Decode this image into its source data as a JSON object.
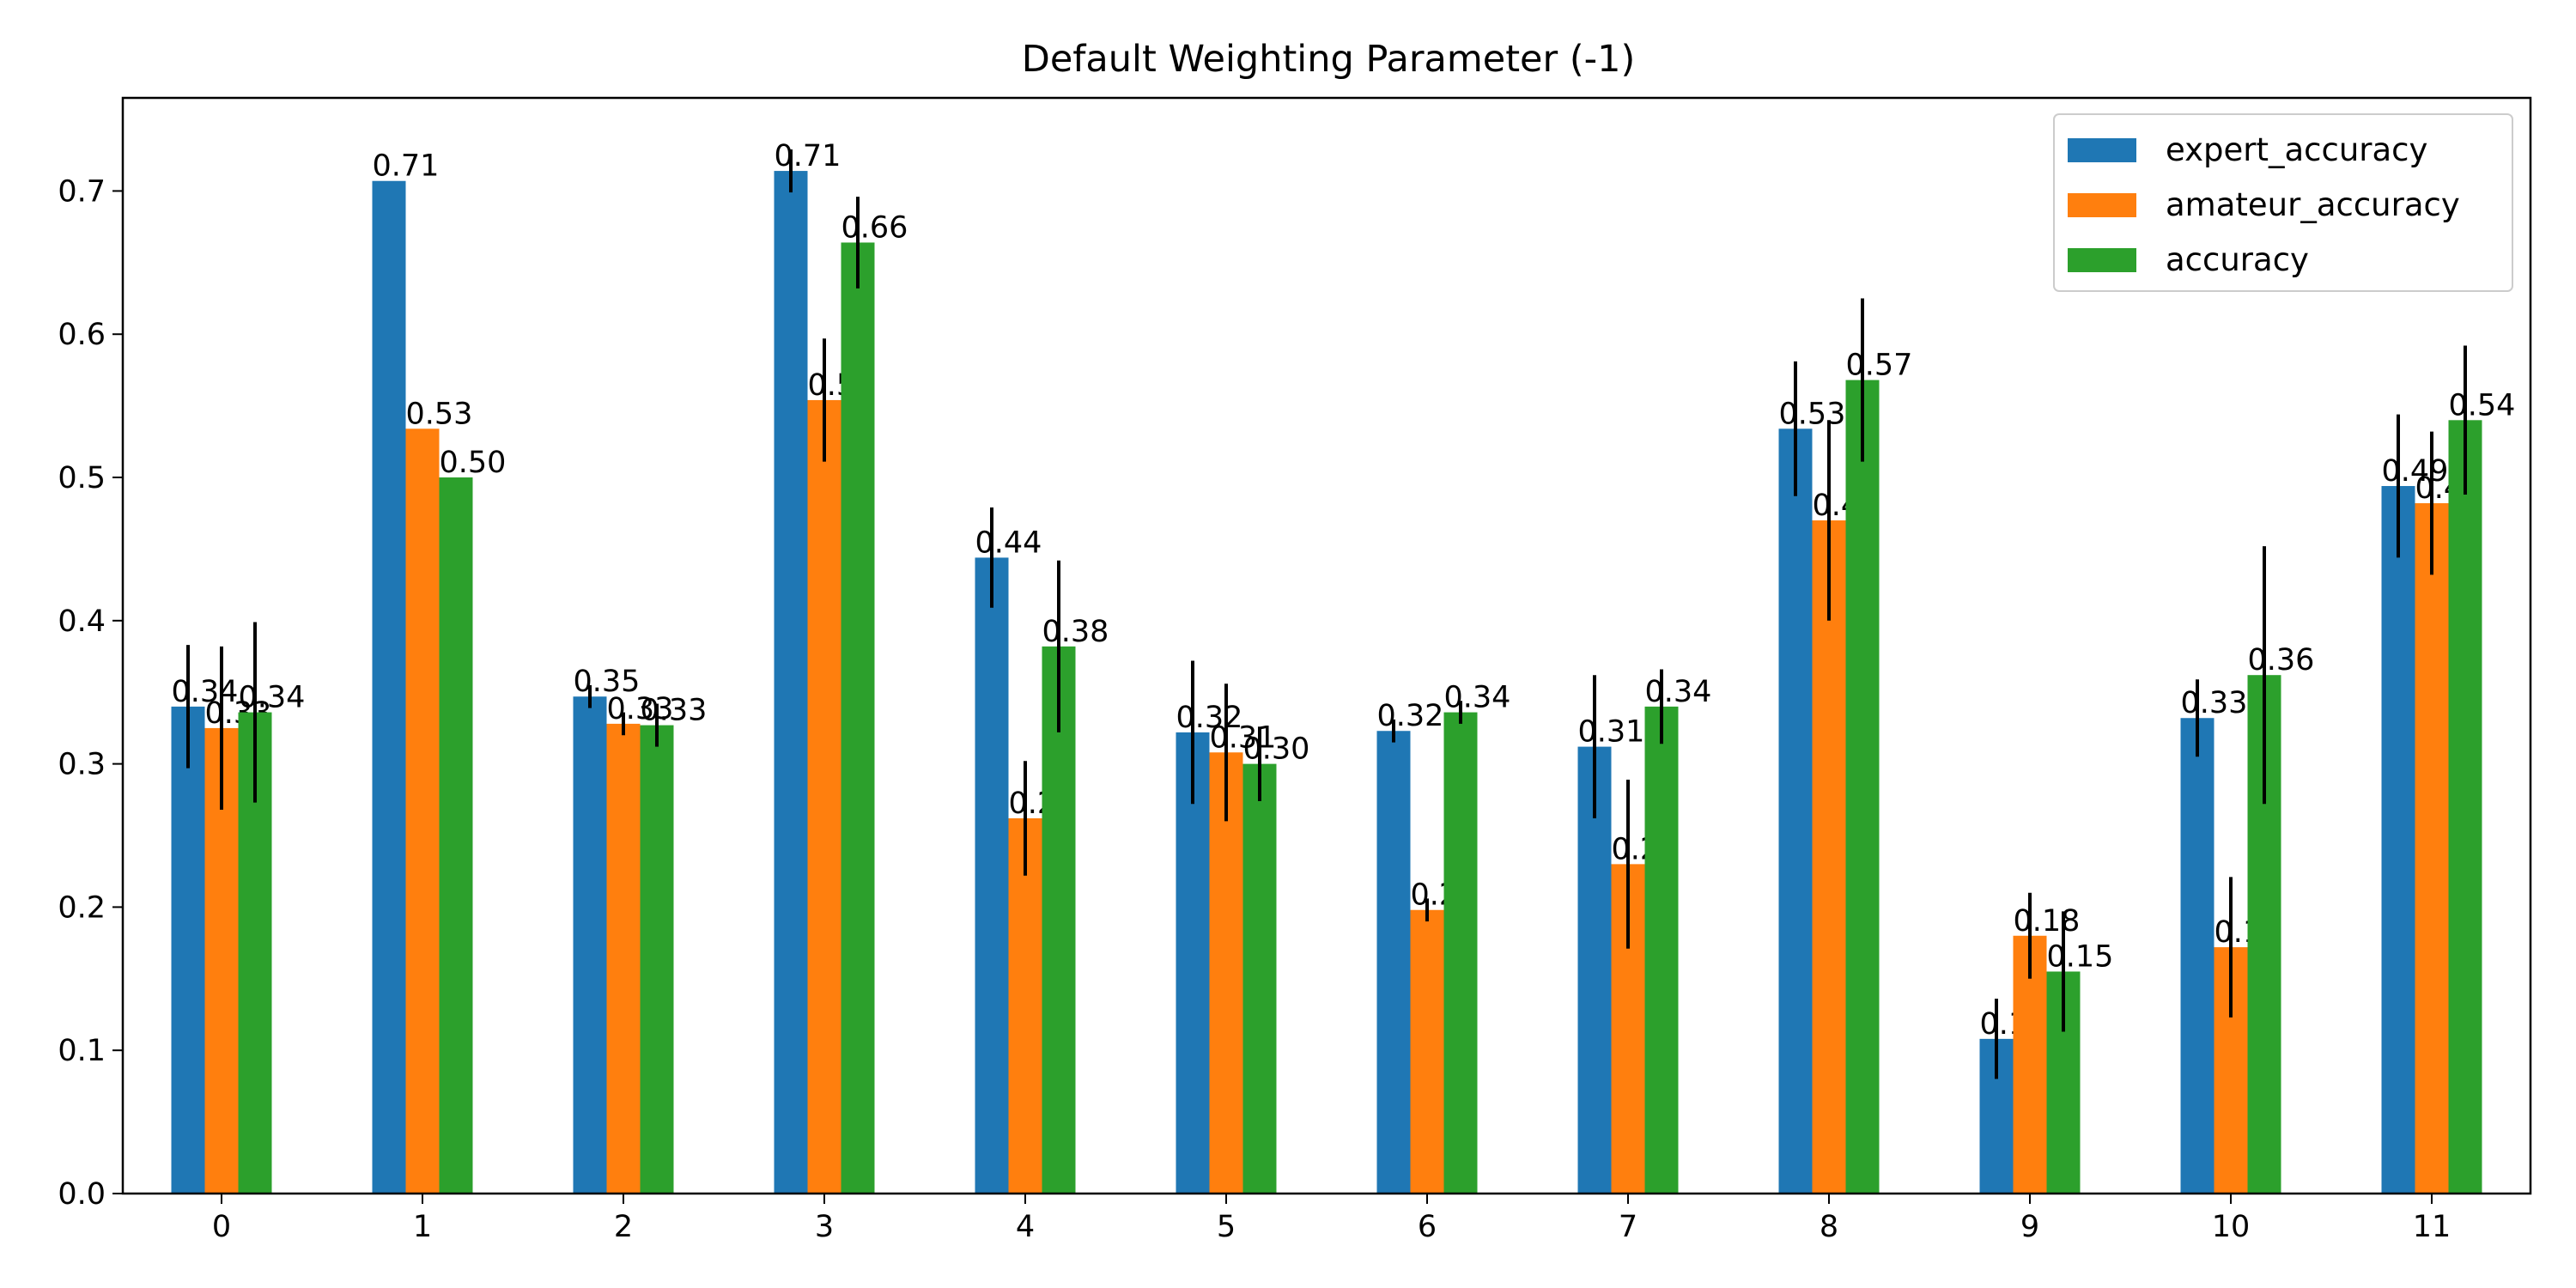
{
  "chart_data": {
    "type": "bar",
    "title": "Default Weighting Parameter (-1)",
    "xlabel": "",
    "ylabel": "",
    "categories": [
      "0",
      "1",
      "2",
      "3",
      "4",
      "5",
      "6",
      "7",
      "8",
      "9",
      "10",
      "11"
    ],
    "ylim": [
      0,
      0.765
    ],
    "yticks": [
      0.0,
      0.1,
      0.2,
      0.3,
      0.4,
      0.5,
      0.6,
      0.7
    ],
    "ytick_labels": [
      "0.0",
      "0.1",
      "0.2",
      "0.3",
      "0.4",
      "0.5",
      "0.6",
      "0.7"
    ],
    "grid": false,
    "legend_position": "top-right",
    "series": [
      {
        "name": "expert_accuracy",
        "color": "#1f77b4",
        "values": [
          0.34,
          0.707,
          0.347,
          0.714,
          0.444,
          0.322,
          0.323,
          0.312,
          0.534,
          0.108,
          0.332,
          0.494
        ],
        "errors": [
          0.043,
          0.0,
          0.008,
          0.015,
          0.035,
          0.05,
          0.008,
          0.05,
          0.047,
          0.028,
          0.027,
          0.05
        ],
        "labels": [
          "0.34",
          "0.71",
          "0.35",
          "0.71",
          "0.44",
          "0.32",
          "0.32",
          "0.31",
          "0.53",
          "0.11",
          "0.33",
          "0.49"
        ]
      },
      {
        "name": "amateur_accuracy",
        "color": "#ff7f0e",
        "values": [
          0.325,
          0.534,
          0.328,
          0.554,
          0.262,
          0.308,
          0.198,
          0.23,
          0.47,
          0.18,
          0.172,
          0.482
        ],
        "errors": [
          0.057,
          0.0,
          0.008,
          0.043,
          0.04,
          0.048,
          0.008,
          0.059,
          0.07,
          0.03,
          0.049,
          0.05
        ],
        "labels": [
          "0.33",
          "0.53",
          "0.33",
          "0.55",
          "0.26",
          "0.31",
          "0.20",
          "0.23",
          "0.47",
          "0.18",
          "0.17",
          "0.48"
        ]
      },
      {
        "name": "accuracy",
        "color": "#2ca02c",
        "values": [
          0.336,
          0.5,
          0.327,
          0.664,
          0.382,
          0.3,
          0.336,
          0.34,
          0.568,
          0.155,
          0.362,
          0.54
        ],
        "errors": [
          0.063,
          0.0,
          0.015,
          0.032,
          0.06,
          0.026,
          0.008,
          0.026,
          0.057,
          0.042,
          0.09,
          0.052
        ],
        "labels": [
          "0.34",
          "0.50",
          "0.33",
          "0.66",
          "0.38",
          "0.30",
          "0.34",
          "0.34",
          "0.57",
          "0.15",
          "0.36",
          "0.54"
        ]
      }
    ]
  }
}
